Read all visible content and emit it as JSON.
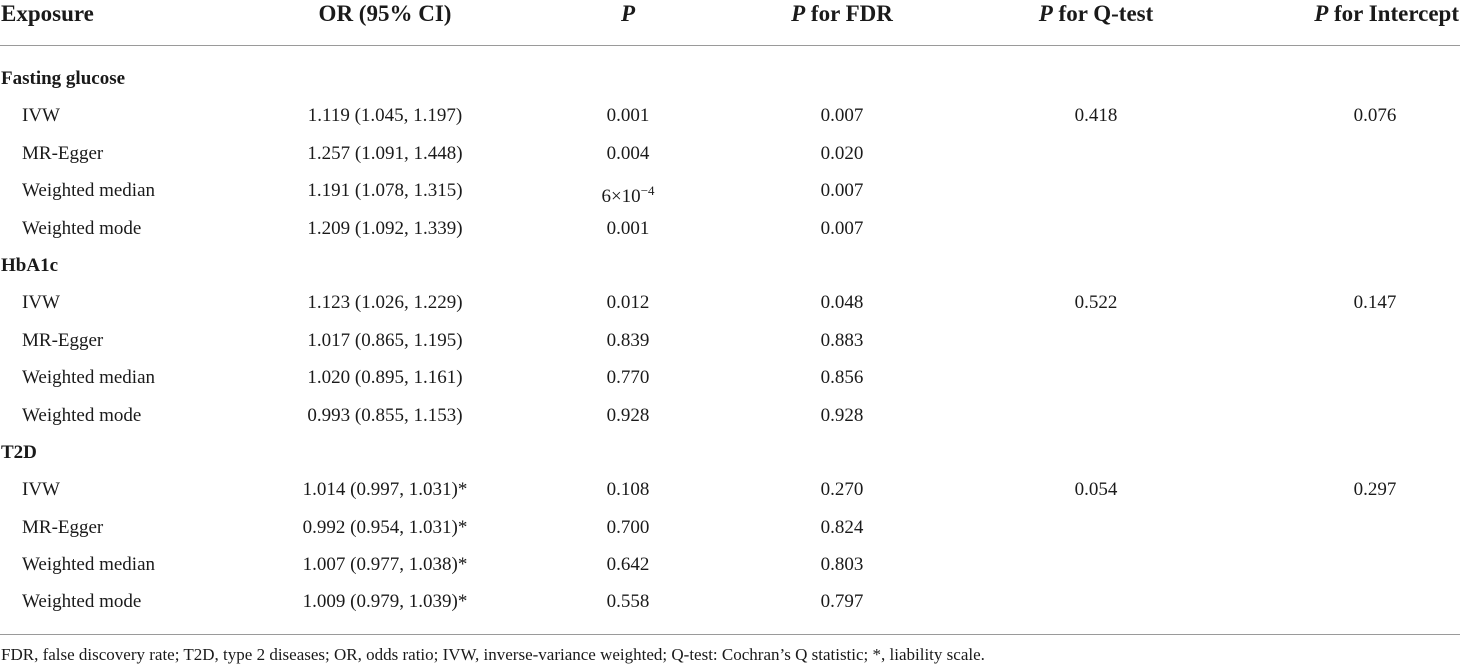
{
  "table": {
    "headers": {
      "exposure": "Exposure",
      "or": "OR (95% CI)",
      "p": "P",
      "p_fdr_italic": "P",
      "p_fdr_rest": " for FDR",
      "p_q_italic": "P",
      "p_q_rest": " for Q-test",
      "p_int_italic": "P",
      "p_int_rest": " for Intercept"
    },
    "groups": [
      {
        "label": "Fasting glucose",
        "rows": [
          {
            "method": "IVW",
            "or": "1.119 (1.045, 1.197)",
            "p": "0.001",
            "fdr": "0.007",
            "q": "0.418",
            "intercept": "0.076"
          },
          {
            "method": "MR-Egger",
            "or": "1.257 (1.091, 1.448)",
            "p": "0.004",
            "fdr": "0.020",
            "q": "",
            "intercept": ""
          },
          {
            "method": "Weighted median",
            "or": "1.191 (1.078, 1.315)",
            "p_base": "6×10",
            "p_exp": "−4",
            "fdr": "0.007",
            "q": "",
            "intercept": ""
          },
          {
            "method": "Weighted mode",
            "or": "1.209 (1.092, 1.339)",
            "p": "0.001",
            "fdr": "0.007",
            "q": "",
            "intercept": ""
          }
        ]
      },
      {
        "label": "HbA1c",
        "rows": [
          {
            "method": "IVW",
            "or": "1.123 (1.026, 1.229)",
            "p": "0.012",
            "fdr": "0.048",
            "q": "0.522",
            "intercept": "0.147"
          },
          {
            "method": "MR-Egger",
            "or": "1.017 (0.865, 1.195)",
            "p": "0.839",
            "fdr": "0.883",
            "q": "",
            "intercept": ""
          },
          {
            "method": "Weighted median",
            "or": "1.020 (0.895, 1.161)",
            "p": "0.770",
            "fdr": "0.856",
            "q": "",
            "intercept": ""
          },
          {
            "method": "Weighted mode",
            "or": "0.993 (0.855, 1.153)",
            "p": "0.928",
            "fdr": "0.928",
            "q": "",
            "intercept": ""
          }
        ]
      },
      {
        "label": "T2D",
        "rows": [
          {
            "method": "IVW",
            "or": "1.014 (0.997, 1.031)*",
            "p": "0.108",
            "fdr": "0.270",
            "q": "0.054",
            "intercept": "0.297"
          },
          {
            "method": "MR-Egger",
            "or": "0.992 (0.954, 1.031)*",
            "p": "0.700",
            "fdr": "0.824",
            "q": "",
            "intercept": ""
          },
          {
            "method": "Weighted median",
            "or": "1.007 (0.977, 1.038)*",
            "p": "0.642",
            "fdr": "0.803",
            "q": "",
            "intercept": ""
          },
          {
            "method": "Weighted mode",
            "or": "1.009 (0.979, 1.039)*",
            "p": "0.558",
            "fdr": "0.797",
            "q": "",
            "intercept": ""
          }
        ]
      }
    ],
    "footnote": "FDR, false discovery rate; T2D, type 2 diseases; OR, odds ratio; IVW, inverse-variance weighted; Q-test: Cochran’s Q statistic; *, liability scale."
  }
}
